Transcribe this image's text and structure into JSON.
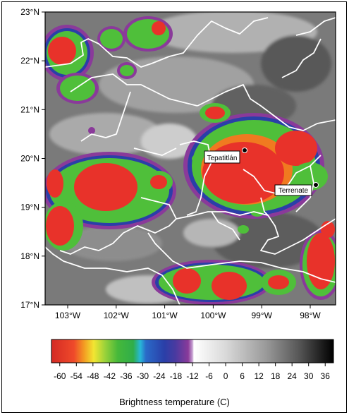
{
  "map": {
    "lat_labels": [
      "23°N",
      "22°N",
      "21°N",
      "20°N",
      "19°N",
      "18°N",
      "17°N"
    ],
    "lon_labels": [
      "103°W",
      "102°W",
      "101°W",
      "100°W",
      "99°W",
      "98°W"
    ],
    "lat_range": [
      17,
      23
    ],
    "lon_range": [
      -103.5,
      -97.8
    ],
    "cities": [
      {
        "name": "Tepatitlán",
        "lat": 20.2,
        "lon": -99.4
      },
      {
        "name": "Terrenate",
        "lat": 19.5,
        "lon": -97.8
      }
    ]
  },
  "colorbar": {
    "title": "Brightness temperature (C)",
    "ticks": [
      "-60",
      "-54",
      "-48",
      "-42",
      "-36",
      "-30",
      "-24",
      "-18",
      "-12",
      "-6",
      "0",
      "6",
      "12",
      "18",
      "24",
      "30",
      "36"
    ],
    "range": [
      -63,
      39
    ]
  },
  "colors": {
    "cold_red": "#e8322a",
    "orange": "#f07a20",
    "yellow": "#f2e632",
    "green": "#4fbf3a",
    "cyan": "#23b8e0",
    "blue": "#2a3fa8",
    "purple": "#8a3a9a",
    "white": "#ffffff",
    "warm_black": "#000000"
  }
}
